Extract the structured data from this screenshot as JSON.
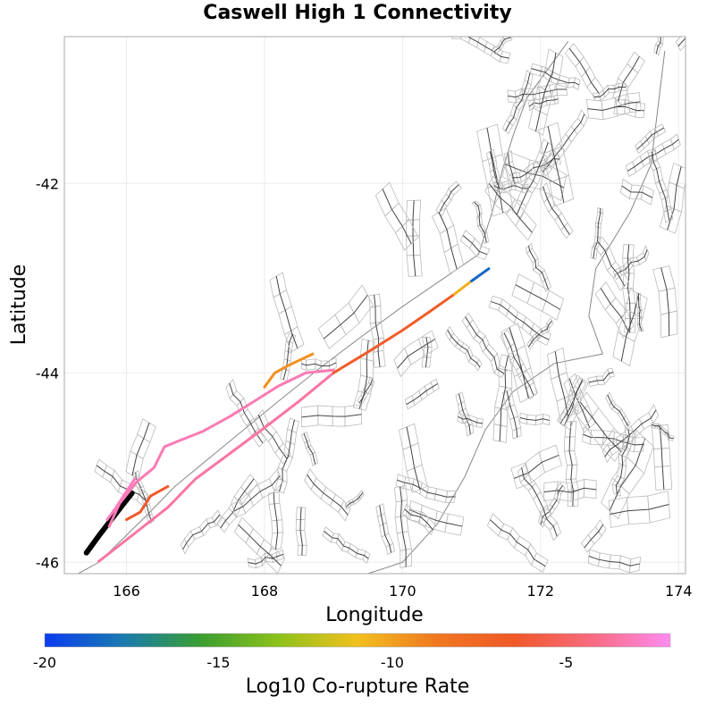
{
  "title": "Caswell High 1 Connectivity",
  "map": {
    "xlabel": "Longitude",
    "ylabel": "Latitude",
    "xlim": [
      165.1,
      174.1
    ],
    "ylim": [
      -46.12,
      -40.45
    ],
    "x_ticks": [
      166,
      168,
      170,
      172,
      174
    ],
    "y_ticks": [
      -42,
      -44,
      -46
    ],
    "x_tick_labels": [
      "166",
      "168",
      "170",
      "172",
      "174"
    ],
    "y_tick_labels": [
      "-42",
      "-44",
      "-46"
    ]
  },
  "colorbar": {
    "label": "Log10 Co-rupture Rate",
    "range": [
      -20,
      -2
    ],
    "ticks": [
      -20,
      -15,
      -10,
      -5
    ],
    "tick_labels": [
      "-20",
      "-15",
      "-10",
      "-5"
    ],
    "stops": [
      "#0a3cf0",
      "#1a7ab0",
      "#3a9e30",
      "#8ec21a",
      "#f2c01e",
      "#f07820",
      "#f05828",
      "#f86a80",
      "#ff8cf0"
    ]
  },
  "colors": {
    "background": "#ffffff",
    "frame": "#aaaaaa",
    "grid": "#ebebeb",
    "coast": "#888888",
    "fault_trace": "#444444",
    "fault_box": "#bbbbbb",
    "source_fault": "#000000"
  },
  "ruptures": [
    {
      "name": "source",
      "log10_rate": null,
      "lon": [
        165.42,
        165.6,
        165.78,
        165.96,
        166.08
      ],
      "lat": [
        -45.9,
        -45.72,
        -45.55,
        -45.38,
        -45.27
      ]
    },
    {
      "name": "alpine-main-a",
      "log10_rate": -3.5,
      "lon": [
        165.6,
        165.9,
        166.25,
        166.6,
        167.0,
        167.5,
        168.0,
        168.5,
        169.0
      ],
      "lat": [
        -45.99,
        -45.82,
        -45.62,
        -45.42,
        -45.12,
        -44.85,
        -44.58,
        -44.3,
        -44.0
      ]
    },
    {
      "name": "alpine-main-b",
      "log10_rate": -6.8,
      "lon": [
        169.0,
        169.5,
        170.0,
        170.4,
        170.75
      ],
      "lat": [
        -44.0,
        -43.78,
        -43.55,
        -43.35,
        -43.17
      ]
    },
    {
      "name": "alpine-main-c",
      "log10_rate": -10.5,
      "lon": [
        170.75,
        171.0
      ],
      "lat": [
        -43.17,
        -43.03
      ]
    },
    {
      "name": "alpine-north",
      "log10_rate": -18.5,
      "lon": [
        171.0,
        171.25
      ],
      "lat": [
        -43.03,
        -42.9
      ]
    },
    {
      "name": "western-strand",
      "log10_rate": -3.2,
      "lon": [
        165.75,
        165.9,
        166.15,
        166.4,
        166.55,
        166.75,
        167.1,
        167.5,
        167.85,
        168.2,
        168.6,
        169.0
      ],
      "lat": [
        -45.62,
        -45.38,
        -45.15,
        -45.0,
        -44.78,
        -44.72,
        -44.62,
        -44.46,
        -44.3,
        -44.14,
        -44.0,
        -43.97
      ]
    },
    {
      "name": "puysegur-branch",
      "log10_rate": -3.0,
      "lon": [
        165.72,
        165.85,
        166.0,
        166.12
      ],
      "lat": [
        -45.55,
        -45.42,
        -45.25,
        -45.12
      ]
    },
    {
      "name": "fiordland-branch",
      "log10_rate": -6.5,
      "lon": [
        166.0,
        166.2,
        166.35,
        166.6
      ],
      "lat": [
        -45.55,
        -45.47,
        -45.3,
        -45.2
      ]
    },
    {
      "name": "hope-branch",
      "log10_rate": -9.5,
      "lon": [
        168.0,
        168.15,
        168.35,
        168.7
      ],
      "lat": [
        -44.15,
        -44.0,
        -43.92,
        -43.8
      ]
    }
  ]
}
